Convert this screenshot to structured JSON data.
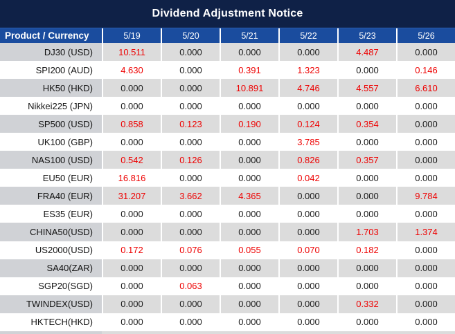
{
  "title": "Dividend Adjustment Notice",
  "colors": {
    "title_bar": "#0f2147",
    "header_blue": "#1a4c9e",
    "row_gray": "#dcdcdc",
    "product_col_gray": "#d0d2d6",
    "value_red": "#ee0000",
    "value_black": "#1a1a1a"
  },
  "table": {
    "columns": [
      "Product / Currency",
      "5/19",
      "5/20",
      "5/21",
      "5/22",
      "5/23",
      "5/26"
    ],
    "zero_value": "0.000",
    "rows": [
      {
        "product": "DJ30 (USD)",
        "values": [
          "10.511",
          "0.000",
          "0.000",
          "0.000",
          "4.487",
          "0.000"
        ]
      },
      {
        "product": "SPI200 (AUD)",
        "values": [
          "4.630",
          "0.000",
          "0.391",
          "1.323",
          "0.000",
          "0.146"
        ]
      },
      {
        "product": "HK50 (HKD)",
        "values": [
          "0.000",
          "0.000",
          "10.891",
          "4.746",
          "4.557",
          "6.610"
        ]
      },
      {
        "product": "Nikkei225 (JPN)",
        "values": [
          "0.000",
          "0.000",
          "0.000",
          "0.000",
          "0.000",
          "0.000"
        ]
      },
      {
        "product": "SP500 (USD)",
        "values": [
          "0.858",
          "0.123",
          "0.190",
          "0.124",
          "0.354",
          "0.000"
        ]
      },
      {
        "product": "UK100 (GBP)",
        "values": [
          "0.000",
          "0.000",
          "0.000",
          "3.785",
          "0.000",
          "0.000"
        ]
      },
      {
        "product": "NAS100 (USD)",
        "values": [
          "0.542",
          "0.126",
          "0.000",
          "0.826",
          "0.357",
          "0.000"
        ]
      },
      {
        "product": "EU50 (EUR)",
        "values": [
          "16.816",
          "0.000",
          "0.000",
          "0.042",
          "0.000",
          "0.000"
        ]
      },
      {
        "product": "FRA40 (EUR)",
        "values": [
          "31.207",
          "3.662",
          "4.365",
          "0.000",
          "0.000",
          "9.784"
        ]
      },
      {
        "product": "ES35 (EUR)",
        "values": [
          "0.000",
          "0.000",
          "0.000",
          "0.000",
          "0.000",
          "0.000"
        ]
      },
      {
        "product": "CHINA50(USD)",
        "values": [
          "0.000",
          "0.000",
          "0.000",
          "0.000",
          "1.703",
          "1.374"
        ]
      },
      {
        "product": "US2000(USD)",
        "values": [
          "0.172",
          "0.076",
          "0.055",
          "0.070",
          "0.182",
          "0.000"
        ]
      },
      {
        "product": "SA40(ZAR)",
        "values": [
          "0.000",
          "0.000",
          "0.000",
          "0.000",
          "0.000",
          "0.000"
        ]
      },
      {
        "product": "SGP20(SGD)",
        "values": [
          "0.000",
          "0.063",
          "0.000",
          "0.000",
          "0.000",
          "0.000"
        ]
      },
      {
        "product": "TWINDEX(USD)",
        "values": [
          "0.000",
          "0.000",
          "0.000",
          "0.000",
          "0.332",
          "0.000"
        ]
      },
      {
        "product": "HKTECH(HKD)",
        "values": [
          "0.000",
          "0.000",
          "0.000",
          "0.000",
          "0.000",
          "0.000"
        ]
      }
    ]
  }
}
